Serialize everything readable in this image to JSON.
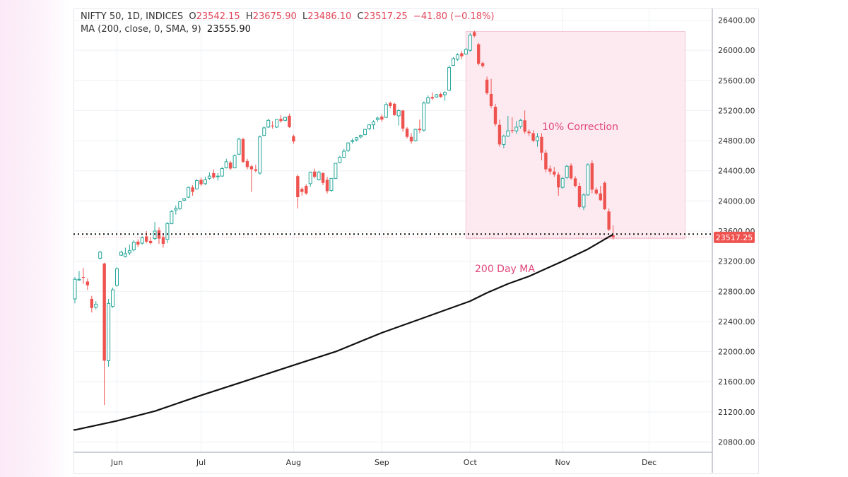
{
  "legend": {
    "symbol": "NIFTY 50, 1D, INDICES",
    "o_label": "O",
    "o_value": "23542.15",
    "h_label": "H",
    "h_value": "23675.90",
    "l_label": "L",
    "l_value": "23486.10",
    "c_label": "C",
    "c_value": "23517.25",
    "change": "−41.80 (−0.18%)",
    "ma_label": "MA (200, close, 0, SMA, 9)",
    "ma_value": "23555.90"
  },
  "colors": {
    "up": "#26a69a",
    "down": "#ef5350",
    "ma": "#111111",
    "annotation": "#e0477a",
    "correction_fill": "#fde6ee",
    "price_tag": "#ef5350"
  },
  "chart_data": {
    "type": "candlestick",
    "title": "NIFTY 50, 1D, INDICES",
    "y_axis": {
      "position": "right",
      "ylim": [
        20650,
        26450
      ],
      "ticks": [
        26400,
        26000,
        25600,
        25200,
        24800,
        24400,
        24000,
        23600,
        23200,
        22800,
        22400,
        22000,
        21600,
        21200,
        20800
      ],
      "tick_labels": [
        "26400.00",
        "26000.00",
        "25600.00",
        "25200.00",
        "24800.00",
        "24400.00",
        "24000.00",
        "23600.00",
        "23200.00",
        "22800.00",
        "22400.00",
        "22000.00",
        "21600.00",
        "21200.00",
        "20800.00"
      ]
    },
    "x_axis": {
      "tick_labels": [
        "Jun",
        "Jul",
        "Aug",
        "Sep",
        "Oct",
        "Nov",
        "Dec"
      ],
      "tick_dates": [
        "2024-06-03",
        "2024-07-01",
        "2024-08-01",
        "2024-09-02",
        "2024-10-01",
        "2024-11-01",
        "2024-12-02"
      ]
    },
    "grid": true,
    "last_price": 23517.25,
    "last_price_label": "23517.25",
    "horizontal_line": 23560,
    "series": [
      {
        "type": "candlestick",
        "ohlc": [
          [
            "2024-05-20",
            22700,
            22990,
            22640,
            22960
          ],
          [
            "2024-05-21",
            22950,
            23070,
            22940,
            22960
          ],
          [
            "2024-05-22",
            22990,
            23110,
            22900,
            22980
          ],
          [
            "2024-05-23",
            22930,
            22970,
            22820,
            22880
          ],
          [
            "2024-05-24",
            22700,
            22740,
            22520,
            22580
          ],
          [
            "2024-05-27",
            22590,
            22670,
            22560,
            22630
          ],
          [
            "2024-05-28",
            23240,
            23340,
            23220,
            23320
          ],
          [
            "2024-05-29",
            23170,
            23180,
            21290,
            21880
          ],
          [
            "2024-05-30",
            21880,
            22700,
            21800,
            22640
          ],
          [
            "2024-05-31",
            22600,
            22850,
            22580,
            22820
          ],
          [
            "2024-06-03",
            22880,
            23120,
            22860,
            23100
          ],
          [
            "2024-06-04",
            23280,
            23340,
            23270,
            23320
          ],
          [
            "2024-06-05",
            23260,
            23380,
            23250,
            23300
          ],
          [
            "2024-06-06",
            23310,
            23420,
            23280,
            23340
          ],
          [
            "2024-06-07",
            23350,
            23480,
            23330,
            23450
          ],
          [
            "2024-06-10",
            23460,
            23490,
            23390,
            23420
          ],
          [
            "2024-06-11",
            23440,
            23530,
            23420,
            23510
          ],
          [
            "2024-06-12",
            23530,
            23600,
            23440,
            23460
          ],
          [
            "2024-06-13",
            23470,
            23520,
            23420,
            23440
          ],
          [
            "2024-06-14",
            23500,
            23720,
            23480,
            23600
          ],
          [
            "2024-06-17",
            23610,
            23650,
            23430,
            23500
          ],
          [
            "2024-06-18",
            23520,
            23570,
            23380,
            23430
          ],
          [
            "2024-06-19",
            23490,
            23720,
            23440,
            23700
          ],
          [
            "2024-06-20",
            23700,
            23880,
            23690,
            23860
          ],
          [
            "2024-06-21",
            23880,
            23940,
            23820,
            23900
          ],
          [
            "2024-06-24",
            23900,
            24000,
            23880,
            23990
          ],
          [
            "2024-06-25",
            24010,
            24040,
            24000,
            24030
          ],
          [
            "2024-06-26",
            24050,
            24190,
            24040,
            24180
          ],
          [
            "2024-06-27",
            24180,
            24210,
            24070,
            24120
          ],
          [
            "2024-06-28",
            24160,
            24290,
            24150,
            24270
          ],
          [
            "2024-07-01",
            24280,
            24310,
            24200,
            24220
          ],
          [
            "2024-07-02",
            24230,
            24320,
            24210,
            24280
          ],
          [
            "2024-07-03",
            24300,
            24380,
            24280,
            24330
          ],
          [
            "2024-07-04",
            24370,
            24420,
            24290,
            24310
          ],
          [
            "2024-07-05",
            24320,
            24370,
            24270,
            24330
          ],
          [
            "2024-07-08",
            24330,
            24450,
            24320,
            24430
          ],
          [
            "2024-07-09",
            24440,
            24560,
            24430,
            24520
          ],
          [
            "2024-07-10",
            24510,
            24530,
            24410,
            24430
          ],
          [
            "2024-07-11",
            24440,
            24620,
            24430,
            24600
          ],
          [
            "2024-07-12",
            24620,
            24840,
            24610,
            24820
          ],
          [
            "2024-07-15",
            24820,
            24840,
            24500,
            24520
          ],
          [
            "2024-07-16",
            24530,
            24560,
            24420,
            24450
          ],
          [
            "2024-07-18",
            24460,
            24480,
            24120,
            24420
          ],
          [
            "2024-07-19",
            24420,
            24480,
            24380,
            24400
          ],
          [
            "2024-07-22",
            24370,
            24870,
            24350,
            24850
          ],
          [
            "2024-07-23",
            24870,
            24990,
            24860,
            24970
          ],
          [
            "2024-07-24",
            24980,
            25090,
            24970,
            25070
          ],
          [
            "2024-07-25",
            25000,
            25060,
            24960,
            24990
          ],
          [
            "2024-07-26",
            24980,
            25080,
            24970,
            25080
          ],
          [
            "2024-07-29",
            25090,
            25140,
            25040,
            25060
          ],
          [
            "2024-07-30",
            25070,
            25120,
            25060,
            25110
          ],
          [
            "2024-07-31",
            25130,
            25160,
            24970,
            24980
          ],
          [
            "2024-08-01",
            24860,
            24880,
            24760,
            24790
          ],
          [
            "2024-08-02",
            24330,
            24350,
            23900,
            24050
          ],
          [
            "2024-08-05",
            24160,
            24180,
            24070,
            24120
          ],
          [
            "2024-08-06",
            24200,
            24220,
            24080,
            24100
          ],
          [
            "2024-08-07",
            24230,
            24390,
            24190,
            24380
          ],
          [
            "2024-08-08",
            24390,
            24430,
            24300,
            24320
          ],
          [
            "2024-08-09",
            24280,
            24400,
            24270,
            24380
          ],
          [
            "2024-08-12",
            24370,
            24380,
            24210,
            24240
          ],
          [
            "2024-08-13",
            24280,
            24320,
            24100,
            24130
          ],
          [
            "2024-08-14",
            24140,
            24300,
            24120,
            24300
          ],
          [
            "2024-08-16",
            24300,
            24500,
            24290,
            24500
          ],
          [
            "2024-08-19",
            24510,
            24600,
            24500,
            24580
          ],
          [
            "2024-08-20",
            24580,
            24690,
            24570,
            24660
          ],
          [
            "2024-08-21",
            24670,
            24780,
            24650,
            24770
          ],
          [
            "2024-08-22",
            24790,
            24830,
            24760,
            24800
          ],
          [
            "2024-08-23",
            24810,
            24850,
            24790,
            24840
          ],
          [
            "2024-08-26",
            24850,
            24880,
            24830,
            24870
          ],
          [
            "2024-08-27",
            24880,
            24960,
            24870,
            24950
          ],
          [
            "2024-08-28",
            24960,
            25020,
            24940,
            25010
          ],
          [
            "2024-08-29",
            25010,
            25070,
            24950,
            25050
          ],
          [
            "2024-08-30",
            25080,
            25120,
            25050,
            25100
          ],
          [
            "2024-09-02",
            25120,
            25150,
            25050,
            25080
          ],
          [
            "2024-09-03",
            25110,
            25310,
            25100,
            25280
          ],
          [
            "2024-09-04",
            25300,
            25320,
            25230,
            25260
          ],
          [
            "2024-09-05",
            25290,
            25300,
            25130,
            25140
          ],
          [
            "2024-09-06",
            25130,
            25220,
            25000,
            25200
          ],
          [
            "2024-09-09",
            25200,
            25210,
            24920,
            24960
          ],
          [
            "2024-09-10",
            24960,
            24980,
            24830,
            24850
          ],
          [
            "2024-09-11",
            24850,
            24900,
            24760,
            24790
          ],
          [
            "2024-09-12",
            24800,
            24960,
            24790,
            24950
          ],
          [
            "2024-09-13",
            24960,
            25080,
            24900,
            24940
          ],
          [
            "2024-09-16",
            24940,
            25320,
            24920,
            25300
          ],
          [
            "2024-09-17",
            25300,
            25400,
            25290,
            25370
          ],
          [
            "2024-09-18",
            25380,
            25440,
            25340,
            25360
          ],
          [
            "2024-09-19",
            25380,
            25420,
            25370,
            25410
          ],
          [
            "2024-09-20",
            25420,
            25440,
            25370,
            25380
          ],
          [
            "2024-09-23",
            25410,
            25460,
            25330,
            25440
          ],
          [
            "2024-09-24",
            25470,
            25800,
            25460,
            25770
          ],
          [
            "2024-09-25",
            25800,
            25910,
            25790,
            25890
          ],
          [
            "2024-09-26",
            25880,
            25960,
            25860,
            25940
          ],
          [
            "2024-09-27",
            25960,
            25990,
            25880,
            25920
          ],
          [
            "2024-09-30",
            25950,
            26030,
            25940,
            26010
          ],
          [
            "2024-10-01",
            26000,
            26230,
            25980,
            26200
          ],
          [
            "2024-10-03",
            26240,
            26260,
            26170,
            26190
          ],
          [
            "2024-10-04",
            26080,
            26100,
            25800,
            25820
          ],
          [
            "2024-10-07",
            25830,
            25850,
            25770,
            25790
          ],
          [
            "2024-10-08",
            25610,
            25650,
            25410,
            25430
          ],
          [
            "2024-10-09",
            25420,
            25620,
            25230,
            25260
          ],
          [
            "2024-10-10",
            25250,
            25290,
            24990,
            25020
          ],
          [
            "2024-10-11",
            25010,
            25080,
            24720,
            24750
          ],
          [
            "2024-10-14",
            24750,
            24880,
            24700,
            24860
          ],
          [
            "2024-10-15",
            24860,
            25130,
            24850,
            24930
          ],
          [
            "2024-10-16",
            24940,
            25110,
            24900,
            24930
          ],
          [
            "2024-10-17",
            24930,
            25060,
            24890,
            24980
          ],
          [
            "2024-10-18",
            24990,
            25090,
            24960,
            25070
          ],
          [
            "2024-10-21",
            25070,
            25200,
            24890,
            24920
          ],
          [
            "2024-10-22",
            24920,
            24950,
            24860,
            24900
          ],
          [
            "2024-10-23",
            24900,
            24940,
            24780,
            24800
          ],
          [
            "2024-10-24",
            24800,
            24900,
            24720,
            24850
          ],
          [
            "2024-10-25",
            24850,
            24900,
            24540,
            24640
          ],
          [
            "2024-10-28",
            24640,
            24680,
            24380,
            24420
          ],
          [
            "2024-10-29",
            24430,
            24470,
            24350,
            24390
          ],
          [
            "2024-10-30",
            24390,
            24450,
            24320,
            24350
          ],
          [
            "2024-10-31",
            24350,
            24380,
            24070,
            24180
          ],
          [
            "2024-11-01",
            24180,
            24320,
            24160,
            24300
          ],
          [
            "2024-11-04",
            24310,
            24480,
            24290,
            24460
          ],
          [
            "2024-11-05",
            24470,
            24500,
            24280,
            24300
          ],
          [
            "2024-11-06",
            24300,
            24330,
            24180,
            24200
          ],
          [
            "2024-11-07",
            24200,
            24240,
            23900,
            23920
          ],
          [
            "2024-11-08",
            23920,
            24100,
            23880,
            24080
          ],
          [
            "2024-11-11",
            24080,
            24500,
            24070,
            24480
          ],
          [
            "2024-11-12",
            24500,
            24540,
            24100,
            24150
          ],
          [
            "2024-11-13",
            24150,
            24180,
            24080,
            24100
          ],
          [
            "2024-11-14",
            24100,
            24200,
            24000,
            24010
          ],
          [
            "2024-11-18",
            24240,
            24260,
            23880,
            23890
          ],
          [
            "2024-11-19",
            23860,
            23900,
            23600,
            23620
          ],
          [
            "2024-11-20",
            23542.15,
            23675.9,
            23486.1,
            23517.25
          ]
        ]
      },
      {
        "type": "line",
        "name": "MA (200, close, 0, SMA, 9)",
        "points": [
          [
            "2024-05-20",
            20960
          ],
          [
            "2024-06-03",
            21080
          ],
          [
            "2024-06-14",
            21210
          ],
          [
            "2024-07-01",
            21420
          ],
          [
            "2024-07-15",
            21600
          ],
          [
            "2024-08-01",
            21820
          ],
          [
            "2024-08-16",
            22000
          ],
          [
            "2024-09-02",
            22250
          ],
          [
            "2024-09-16",
            22450
          ],
          [
            "2024-10-01",
            22670
          ],
          [
            "2024-10-08",
            22780
          ],
          [
            "2024-10-15",
            22900
          ],
          [
            "2024-10-22",
            23000
          ],
          [
            "2024-11-01",
            23200
          ],
          [
            "2024-11-11",
            23360
          ],
          [
            "2024-11-20",
            23555.9
          ]
        ]
      }
    ],
    "annotations": [
      {
        "type": "rectangle",
        "label": "10% Correction",
        "from_date": "2024-09-30",
        "to_date": "2024-12-14",
        "y_top": 26250,
        "y_bottom": 23500
      },
      {
        "type": "text",
        "label": "200 Day MA",
        "date": "2024-10-29",
        "y": 23030
      }
    ]
  }
}
